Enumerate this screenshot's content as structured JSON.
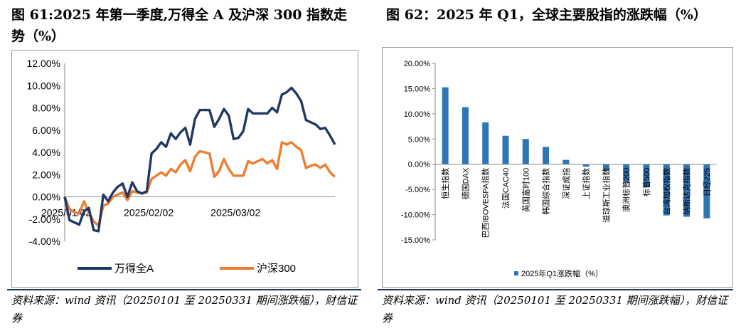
{
  "left": {
    "title": "图 61:2025 年第一季度,万得全 A 及沪深 300 指数走势（%）",
    "source": "资料来源：wind 资讯（20250101 至 20250331 期间涨跌幅），财信证券"
  },
  "right": {
    "title": "图 62：2025 年 Q1，全球主要股指的涨跌幅（%）",
    "source": "资料来源：wind 资讯（20250101 至 20250331 期间涨跌幅），财信证券"
  },
  "colors": {
    "navy": "#1f3864",
    "orange": "#ed7d31",
    "blue": "#2e75b6",
    "rule": "#1f3864"
  },
  "chart_data": [
    {
      "type": "line",
      "title": "",
      "xlabel": "",
      "ylabel": "",
      "ylim": [
        -4,
        12
      ],
      "yticks": [
        "-4.00%",
        "-2.00%",
        "0.00%",
        "2.00%",
        "4.00%",
        "6.00%",
        "8.00%",
        "10.00%",
        "12.00%"
      ],
      "xticks": [
        {
          "label": "2025/01/02",
          "x": "2025/01/02"
        },
        {
          "label": "2025/02/02",
          "x": "2025/02/02"
        },
        {
          "label": "2025/03/02",
          "x": "2025/03/02"
        }
      ],
      "x": [
        "2025/01/02",
        "2025/01/03",
        "2025/01/06",
        "2025/01/07",
        "2025/01/08",
        "2025/01/09",
        "2025/01/10",
        "2025/01/13",
        "2025/01/14",
        "2025/01/15",
        "2025/01/16",
        "2025/01/17",
        "2025/01/20",
        "2025/01/21",
        "2025/01/22",
        "2025/01/23",
        "2025/01/24",
        "2025/01/27",
        "2025/02/05",
        "2025/02/06",
        "2025/02/07",
        "2025/02/10",
        "2025/02/11",
        "2025/02/12",
        "2025/02/13",
        "2025/02/14",
        "2025/02/17",
        "2025/02/18",
        "2025/02/19",
        "2025/02/20",
        "2025/02/21",
        "2025/02/24",
        "2025/02/25",
        "2025/02/26",
        "2025/02/27",
        "2025/02/28",
        "2025/03/03",
        "2025/03/04",
        "2025/03/05",
        "2025/03/06",
        "2025/03/07",
        "2025/03/10",
        "2025/03/11",
        "2025/03/12",
        "2025/03/13",
        "2025/03/14",
        "2025/03/17",
        "2025/03/18",
        "2025/03/19",
        "2025/03/20",
        "2025/03/21",
        "2025/03/24",
        "2025/03/25",
        "2025/03/26",
        "2025/03/27",
        "2025/03/28",
        "2025/03/31"
      ],
      "legend": "bottom",
      "series": [
        {
          "name": "万得全A",
          "color": "#1f3864",
          "values": [
            0.0,
            -2.1,
            -2.3,
            -2.5,
            -1.3,
            -1.0,
            -3.0,
            -3.1,
            0.2,
            -0.4,
            0.4,
            0.9,
            1.2,
            0.0,
            1.3,
            0.5,
            0.3,
            0.5,
            3.9,
            4.3,
            4.9,
            4.5,
            5.7,
            5.2,
            5.8,
            6.2,
            4.7,
            7.0,
            7.8,
            7.8,
            7.8,
            6.3,
            7.0,
            7.9,
            7.3,
            5.2,
            5.3,
            5.9,
            7.9,
            7.5,
            7.5,
            7.5,
            7.5,
            8.0,
            7.6,
            9.2,
            9.4,
            9.8,
            9.3,
            8.6,
            6.9,
            6.7,
            6.5,
            6.1,
            6.2,
            5.5,
            4.7
          ]
        },
        {
          "name": "沪深300",
          "color": "#ed7d31",
          "values": [
            0.0,
            -1.1,
            -1.4,
            -1.5,
            -0.4,
            -1.4,
            -2.2,
            -2.6,
            -0.8,
            -0.6,
            0.0,
            0.2,
            0.4,
            -0.3,
            0.5,
            0.4,
            0.3,
            0.4,
            1.6,
            1.9,
            2.2,
            1.9,
            2.5,
            2.2,
            2.9,
            3.3,
            2.3,
            3.6,
            4.1,
            4.0,
            3.9,
            1.8,
            2.3,
            3.4,
            2.5,
            1.9,
            1.9,
            1.9,
            3.2,
            3.0,
            3.2,
            3.4,
            3.0,
            3.3,
            2.5,
            4.9,
            4.7,
            4.9,
            4.5,
            4.2,
            2.6,
            2.8,
            2.9,
            2.6,
            2.9,
            2.2,
            1.8
          ]
        }
      ]
    },
    {
      "type": "bar",
      "title": "",
      "xlabel": "",
      "ylabel": "",
      "ylim": [
        -15,
        20
      ],
      "yticks": [
        "-15.00%",
        "-10.00%",
        "-5.00%",
        "0.00%",
        "5.00%",
        "10.00%",
        "15.00%",
        "20.00%"
      ],
      "legend": "bottom",
      "categories": [
        "恒生指数",
        "德国DAX",
        "巴西IBOVESPA指数",
        "法国CAC40",
        "英国富时100",
        "韩国综合指数",
        "深证成指",
        "上证指数",
        "道琼斯工业指数",
        "澳洲标普200",
        "标普500",
        "台湾加权指数",
        "纳斯达克指数",
        "日经225"
      ],
      "series": [
        {
          "name": "2025年Q1涨跌幅（%）",
          "color": "#2e75b6",
          "values": [
            15.25,
            11.32,
            8.29,
            5.64,
            5.01,
            3.43,
            0.86,
            -0.48,
            -1.28,
            -3.6,
            -4.59,
            -10.15,
            -10.42,
            -10.72
          ]
        }
      ]
    }
  ]
}
